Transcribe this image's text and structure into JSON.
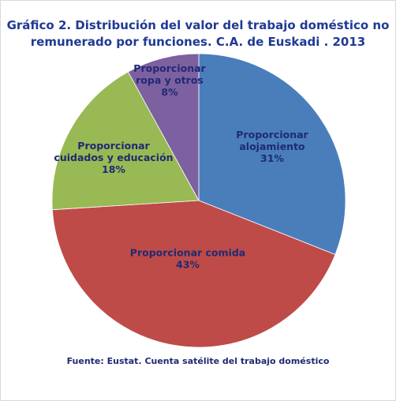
{
  "chart_data": {
    "type": "pie",
    "title": [
      "Gráfico 2. Distribución  del valor del trabajo doméstico  no",
      "remunerado por funciones.  C.A. de Euskadi  . 2013"
    ],
    "slices": [
      {
        "label": [
          "Proporcionar",
          "alojamiento"
        ],
        "pct_label": "31%",
        "value": 31,
        "color": "#4a7ebb"
      },
      {
        "label": [
          "Proporcionar comida"
        ],
        "pct_label": "43%",
        "value": 43,
        "color": "#be4b48"
      },
      {
        "label": [
          "Proporcionar",
          "cuidados y educación"
        ],
        "pct_label": "18%",
        "value": 18,
        "color": "#98b954"
      },
      {
        "label": [
          "Proporcionar",
          "ropa y otros"
        ],
        "pct_label": "8%",
        "value": 8,
        "color": "#7d60a0"
      }
    ],
    "source": "Fuente: Eustat. Cuenta satélite del trabajo doméstico"
  }
}
